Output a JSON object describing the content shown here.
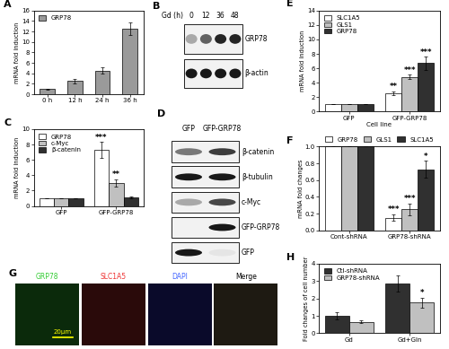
{
  "chart_data": [
    {
      "panel": "A",
      "type": "bar",
      "ylabel": "mRNA fold induction",
      "categories": [
        "0 h",
        "12 h",
        "24 h",
        "36 h"
      ],
      "series": [
        {
          "name": "GRP78",
          "color": "#9a9a9a",
          "values": [
            1,
            2.5,
            4.5,
            12.5
          ],
          "errors": [
            0.1,
            0.4,
            0.6,
            1.2
          ]
        }
      ],
      "ylim": [
        0,
        16
      ],
      "yticks": [
        0,
        2,
        4,
        6,
        8,
        10,
        12,
        14,
        16
      ],
      "legend": "upper left"
    },
    {
      "panel": "C",
      "type": "bar",
      "ylabel": "mRNA fold induction",
      "categories": [
        "GFP",
        "GFP-GRP78"
      ],
      "series": [
        {
          "name": "GRP78",
          "color": "#ffffff",
          "values": [
            1,
            7.3
          ],
          "errors": [
            0,
            1.0
          ],
          "significance": [
            null,
            "***"
          ]
        },
        {
          "name": "c-Myc",
          "color": "#c0c0c0",
          "values": [
            1,
            3.0
          ],
          "errors": [
            0,
            0.5
          ],
          "significance": [
            null,
            "**"
          ]
        },
        {
          "name": "β-catenin",
          "color": "#303030",
          "values": [
            1,
            1.1
          ],
          "errors": [
            0,
            0.15
          ]
        }
      ],
      "ylim": [
        0,
        10
      ],
      "yticks": [
        0,
        2,
        4,
        6,
        8,
        10
      ],
      "legend": "upper left"
    },
    {
      "panel": "E",
      "type": "bar",
      "ylabel": "mRNA fold induction",
      "xlabel": "Cell line",
      "categories": [
        "GFP",
        "GFP-GRP78"
      ],
      "series": [
        {
          "name": "SLC1A5",
          "color": "#ffffff",
          "values": [
            1,
            2.6
          ],
          "errors": [
            0,
            0.25
          ],
          "significance": [
            null,
            "**"
          ]
        },
        {
          "name": "GLS1",
          "color": "#c0c0c0",
          "values": [
            1,
            4.8
          ],
          "errors": [
            0,
            0.3
          ],
          "significance": [
            null,
            "***"
          ]
        },
        {
          "name": "GRP78",
          "color": "#303030",
          "values": [
            1,
            6.7
          ],
          "errors": [
            0,
            0.9
          ],
          "significance": [
            null,
            "***"
          ]
        }
      ],
      "ylim": [
        0,
        14
      ],
      "yticks": [
        0,
        2,
        4,
        6,
        8,
        10,
        12,
        14
      ],
      "legend": "upper left"
    },
    {
      "panel": "F",
      "type": "bar",
      "ylabel": "mRNA fold changes",
      "categories": [
        "Cont-shRNA",
        "GRP78-shRNA"
      ],
      "series": [
        {
          "name": "GRP78",
          "color": "#ffffff",
          "values": [
            1.0,
            0.15
          ],
          "errors": [
            0,
            0.04
          ],
          "significance": [
            null,
            "***"
          ]
        },
        {
          "name": "GLS1",
          "color": "#c0c0c0",
          "values": [
            1.0,
            0.25
          ],
          "errors": [
            0,
            0.07
          ],
          "significance": [
            null,
            "***"
          ]
        },
        {
          "name": "SLC1A5",
          "color": "#303030",
          "values": [
            1.0,
            0.73
          ],
          "errors": [
            0,
            0.1
          ],
          "significance": [
            null,
            "*"
          ]
        }
      ],
      "ylim": [
        0.0,
        1.0
      ],
      "yticks": [
        0.0,
        0.2,
        0.4,
        0.6,
        0.8,
        1.0
      ],
      "legend": "top"
    },
    {
      "panel": "H",
      "type": "bar",
      "ylabel": "Fold changes of cell number",
      "categories": [
        "Gd",
        "Gd+Gln"
      ],
      "series": [
        {
          "name": "Ctl-shRNA",
          "color": "#303030",
          "values": [
            1.0,
            2.85
          ],
          "errors": [
            0.2,
            0.45
          ]
        },
        {
          "name": "GRP78-shRNA",
          "color": "#c0c0c0",
          "values": [
            0.65,
            1.75
          ],
          "errors": [
            0.08,
            0.3
          ],
          "significance": [
            null,
            "*"
          ]
        }
      ],
      "ylim": [
        0,
        4
      ],
      "yticks": [
        0,
        1,
        2,
        3,
        4
      ],
      "legend": "upper left"
    }
  ],
  "blots": [
    {
      "panel": "B",
      "header": "Gd (h)",
      "lanes": [
        "0",
        "12",
        "36",
        "48"
      ],
      "rows": [
        {
          "name": "GRP78",
          "bands": [
            0.3,
            0.6,
            0.85,
            0.85
          ]
        },
        {
          "name": "β-actin",
          "bands": [
            0.9,
            0.9,
            0.9,
            0.9
          ]
        }
      ]
    },
    {
      "panel": "D",
      "lanes": [
        "GFP",
        "GFP-GRP78"
      ],
      "rows": [
        {
          "name": "β-catenin",
          "bands": [
            0.5,
            0.75
          ]
        },
        {
          "name": "β-tubulin",
          "bands": [
            0.9,
            0.9
          ]
        },
        {
          "name": "c-Myc",
          "bands": [
            0.3,
            0.7
          ]
        },
        {
          "name": "GFP-GRP78",
          "bands": [
            0.0,
            0.9
          ]
        },
        {
          "name": "GFP",
          "bands": [
            0.9,
            0.05
          ]
        }
      ]
    }
  ],
  "micrograph": {
    "panel": "G",
    "channels": [
      "GRP78",
      "SLC1A5",
      "DAPI",
      "Merge"
    ],
    "scale_bar": "20μm"
  }
}
